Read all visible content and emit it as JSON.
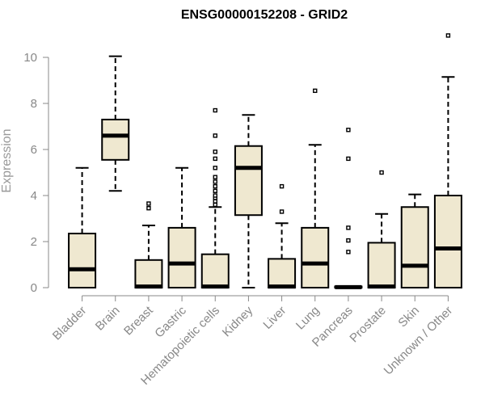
{
  "chart_data": {
    "type": "boxplot",
    "title": "ENSG00000152208 - GRID2",
    "xlabel": "",
    "ylabel": "Expression",
    "ylim": [
      0,
      11
    ],
    "yticks": [
      0,
      2,
      4,
      6,
      8,
      10
    ],
    "grid": false,
    "legend": "none",
    "colors": {
      "box_fill": "#efe8d0",
      "stroke": "#000000",
      "tick_text": "#888888"
    },
    "categories": [
      "Bladder",
      "Brain",
      "Breast",
      "Gastric",
      "Hematopoietic cells",
      "Kidney",
      "Liver",
      "Lung",
      "Pancreas",
      "Prostate",
      "Skin",
      "Unknown / Other"
    ],
    "boxes": [
      {
        "category": "Bladder",
        "lower_whisker": 0,
        "q1": 0,
        "median": 0.8,
        "q3": 2.35,
        "upper_whisker": 5.2,
        "outliers": []
      },
      {
        "category": "Brain",
        "lower_whisker": 4.2,
        "q1": 5.55,
        "median": 6.6,
        "q3": 7.3,
        "upper_whisker": 10.05,
        "outliers": []
      },
      {
        "category": "Breast",
        "lower_whisker": 0,
        "q1": 0,
        "median": 0.05,
        "q3": 1.2,
        "upper_whisker": 2.7,
        "outliers": [
          3.45,
          3.65
        ]
      },
      {
        "category": "Gastric",
        "lower_whisker": 0,
        "q1": 0,
        "median": 1.05,
        "q3": 2.6,
        "upper_whisker": 5.2,
        "outliers": []
      },
      {
        "category": "Hematopoietic cells",
        "lower_whisker": 0,
        "q1": 0,
        "median": 0.05,
        "q3": 1.45,
        "upper_whisker": 3.5,
        "outliers": [
          3.6,
          3.75,
          3.9,
          4.0,
          4.2,
          4.4,
          4.6,
          4.8,
          5.2,
          5.6,
          5.9,
          6.6,
          7.7
        ]
      },
      {
        "category": "Kidney",
        "lower_whisker": 0,
        "q1": 3.15,
        "median": 5.2,
        "q3": 6.15,
        "upper_whisker": 7.5,
        "outliers": []
      },
      {
        "category": "Liver",
        "lower_whisker": 0,
        "q1": 0,
        "median": 0.05,
        "q3": 1.25,
        "upper_whisker": 2.8,
        "outliers": [
          3.3,
          4.4
        ]
      },
      {
        "category": "Lung",
        "lower_whisker": 0,
        "q1": 0,
        "median": 1.05,
        "q3": 2.6,
        "upper_whisker": 6.2,
        "outliers": [
          8.55
        ]
      },
      {
        "category": "Pancreas",
        "lower_whisker": 0,
        "q1": 0,
        "median": 0.02,
        "q3": 0.05,
        "upper_whisker": 0.05,
        "outliers": [
          1.55,
          2.05,
          2.6,
          5.6,
          6.85
        ]
      },
      {
        "category": "Prostate",
        "lower_whisker": 0,
        "q1": 0,
        "median": 0.05,
        "q3": 1.95,
        "upper_whisker": 3.2,
        "outliers": [
          5.0
        ]
      },
      {
        "category": "Skin",
        "lower_whisker": 0,
        "q1": 0,
        "median": 0.95,
        "q3": 3.5,
        "upper_whisker": 4.05,
        "outliers": []
      },
      {
        "category": "Unknown / Other",
        "lower_whisker": 0,
        "q1": 0,
        "median": 1.7,
        "q3": 4.0,
        "upper_whisker": 9.15,
        "outliers": [
          10.95
        ]
      }
    ]
  }
}
